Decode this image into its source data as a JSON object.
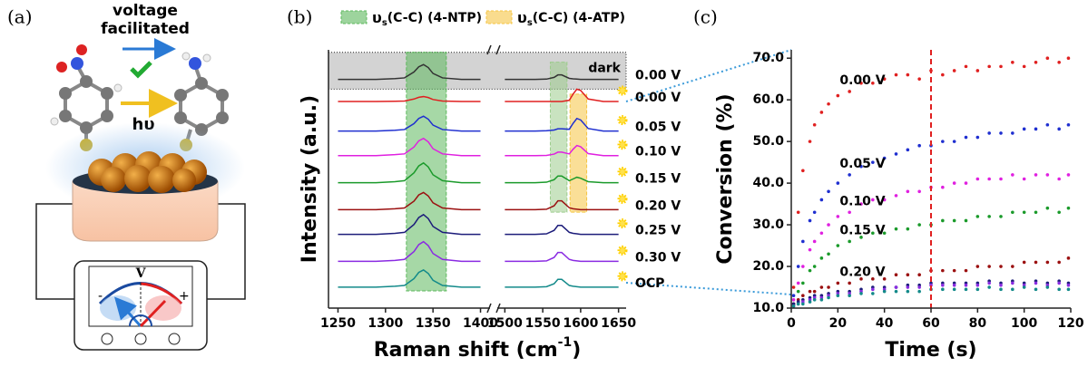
{
  "panel_labels": [
    "(a)",
    "(b)",
    "(c)"
  ],
  "diagram": {
    "top_label": [
      "voltage",
      "facilitated"
    ],
    "light_label": "hυ",
    "meter_label": "V",
    "minus": "-",
    "plus": "+"
  },
  "chart_data": [
    {
      "type": "line",
      "ylabel": "Intensity (a.u.)",
      "xlabel": "Raman shift (cm",
      "xlabel_sup": "-1",
      "xlabel_end": ")",
      "xlim": [
        1240,
        1660
      ],
      "x_break": [
        1410,
        1490
      ],
      "xticks": [
        1250,
        1300,
        1350,
        1400,
        1500,
        1550,
        1600,
        1650
      ],
      "ylim": [
        0,
        10.5
      ],
      "x": [
        1250,
        1290,
        1310,
        1320,
        1330,
        1335,
        1340,
        1345,
        1350,
        1360,
        1380,
        1400,
        1500,
        1540,
        1555,
        1565,
        1570,
        1575,
        1585,
        1590,
        1595,
        1600,
        1610,
        1630,
        1650
      ],
      "bands": [
        {
          "x": [
            1240,
            1660
          ],
          "y": [
            8.9,
            10.4
          ],
          "color": "#c8c8c8",
          "text": "dark"
        },
        {
          "x": [
            1322,
            1364
          ],
          "y": [
            0.7,
            10.4
          ],
          "color": "#5cb85c",
          "legend_symbol": "υ",
          "legend_sub": "s",
          "legend_text": "(C-C) (4-NTP)"
        },
        {
          "x": [
            1560,
            1582
          ],
          "y": [
            3.9,
            10.0
          ],
          "color": "#9ccc8c"
        },
        {
          "x": [
            1586,
            1608
          ],
          "y": [
            3.9,
            8.7
          ],
          "color": "#f5c542",
          "legend_symbol": "υ",
          "legend_sub": "s",
          "legend_text": "(C-C) (4-ATP)"
        }
      ],
      "series": [
        {
          "name": "0.00 V",
          "color": "#333333",
          "light": false,
          "values": [
            9.3,
            9.3,
            9.33,
            9.36,
            9.6,
            9.81,
            9.9,
            9.78,
            9.54,
            9.36,
            9.3,
            9.3,
            9.3,
            9.3,
            9.31,
            9.38,
            9.48,
            9.48,
            9.34,
            9.32,
            9.31,
            9.3,
            9.3,
            9.3,
            9.3
          ]
        },
        {
          "name": "0.00 V",
          "color": "#e02020",
          "light": true,
          "values": [
            8.4,
            8.4,
            8.41,
            8.42,
            8.5,
            8.57,
            8.6,
            8.56,
            8.48,
            8.42,
            8.4,
            8.4,
            8.4,
            8.4,
            8.4,
            8.4,
            8.4,
            8.4,
            8.45,
            8.7,
            8.9,
            8.85,
            8.5,
            8.4,
            8.4
          ]
        },
        {
          "name": "0.05 V",
          "color": "#1f2fd0",
          "light": true,
          "values": [
            7.2,
            7.2,
            7.23,
            7.26,
            7.5,
            7.71,
            7.8,
            7.68,
            7.44,
            7.26,
            7.2,
            7.2,
            7.2,
            7.2,
            7.21,
            7.24,
            7.29,
            7.29,
            7.27,
            7.51,
            7.71,
            7.65,
            7.3,
            7.2,
            7.2
          ]
        },
        {
          "name": "0.10 V",
          "color": "#e020e0",
          "light": true,
          "values": [
            6.2,
            6.2,
            6.24,
            6.27,
            6.55,
            6.8,
            6.9,
            6.76,
            6.48,
            6.27,
            6.2,
            6.2,
            6.2,
            6.2,
            6.21,
            6.26,
            6.34,
            6.34,
            6.27,
            6.46,
            6.61,
            6.56,
            6.28,
            6.2,
            6.2
          ]
        },
        {
          "name": "0.15 V",
          "color": "#1a9a2a",
          "light": true,
          "values": [
            5.1,
            5.1,
            5.14,
            5.18,
            5.5,
            5.78,
            5.9,
            5.74,
            5.42,
            5.18,
            5.1,
            5.1,
            5.1,
            5.1,
            5.12,
            5.22,
            5.37,
            5.37,
            5.18,
            5.25,
            5.32,
            5.28,
            5.14,
            5.1,
            5.1
          ]
        },
        {
          "name": "0.20 V",
          "color": "#9b1010",
          "light": true,
          "values": [
            4.0,
            4.0,
            4.04,
            4.07,
            4.35,
            4.6,
            4.7,
            4.56,
            4.28,
            4.07,
            4.0,
            4.0,
            4.0,
            4.0,
            4.02,
            4.16,
            4.36,
            4.36,
            4.08,
            4.04,
            4.02,
            4.0,
            4.0,
            4.0,
            4.0
          ]
        },
        {
          "name": "0.25 V",
          "color": "#1c1c7a",
          "light": true,
          "values": [
            3.0,
            3.0,
            3.04,
            3.08,
            3.4,
            3.68,
            3.8,
            3.64,
            3.32,
            3.08,
            3.0,
            3.0,
            3.0,
            3.0,
            3.02,
            3.16,
            3.36,
            3.36,
            3.08,
            3.04,
            3.02,
            3.0,
            3.0,
            3.0,
            3.0
          ]
        },
        {
          "name": "0.30 V",
          "color": "#8a2be2",
          "light": true,
          "values": [
            1.9,
            1.9,
            1.94,
            1.98,
            2.3,
            2.58,
            2.7,
            2.54,
            2.22,
            1.98,
            1.9,
            1.9,
            1.9,
            1.9,
            1.92,
            2.06,
            2.26,
            2.26,
            1.98,
            1.94,
            1.92,
            1.9,
            1.9,
            1.9,
            1.9
          ]
        },
        {
          "name": "OCP",
          "color": "#138a8a",
          "light": true,
          "values": [
            0.85,
            0.85,
            0.89,
            0.92,
            1.2,
            1.45,
            1.55,
            1.41,
            1.13,
            0.92,
            0.85,
            0.85,
            0.85,
            0.85,
            0.87,
            0.99,
            1.17,
            1.17,
            0.92,
            0.89,
            0.87,
            0.85,
            0.85,
            0.85,
            0.85
          ]
        }
      ]
    },
    {
      "type": "scatter",
      "xlabel": "Time (s)",
      "ylabel": "Conversion (%)",
      "xlim": [
        0,
        120
      ],
      "xticks": [
        0,
        20,
        40,
        60,
        80,
        100,
        120
      ],
      "ylim": [
        10,
        72
      ],
      "yticks": [
        {
          "value": 10,
          "label": "10.0"
        },
        {
          "value": 20,
          "label": "20.0"
        },
        {
          "value": 30,
          "label": "30.0"
        },
        {
          "value": 40,
          "label": "40.0"
        },
        {
          "value": 50,
          "label": "50.0"
        },
        {
          "value": 60,
          "label": "60.0"
        },
        {
          "value": 70,
          "label": "70.0"
        }
      ],
      "vline": 60,
      "vline_color": "#e02020",
      "x": [
        1,
        3,
        5,
        8,
        10,
        13,
        16,
        20,
        25,
        30,
        35,
        40,
        45,
        50,
        55,
        60,
        65,
        70,
        75,
        80,
        85,
        90,
        95,
        100,
        105,
        110,
        115,
        119
      ],
      "series": [
        {
          "name": "0.00 V",
          "color": "#e02020",
          "values": [
            15,
            33,
            43,
            50,
            54,
            57,
            59,
            61,
            62,
            64,
            64,
            65,
            66,
            66,
            65,
            67,
            66,
            67,
            68,
            67,
            68,
            68,
            69,
            68,
            69,
            70,
            69,
            70
          ]
        },
        {
          "name": "0.05 V",
          "color": "#1f2fd0",
          "values": [
            13,
            20,
            26,
            31,
            33,
            36,
            38,
            40,
            42,
            44,
            45,
            46,
            47,
            48,
            49,
            49,
            50,
            50,
            51,
            51,
            52,
            52,
            52,
            53,
            53,
            54,
            53,
            54
          ]
        },
        {
          "name": "0.10 V",
          "color": "#e020e0",
          "values": [
            12,
            16,
            20,
            24,
            26,
            28,
            30,
            32,
            33,
            35,
            36,
            36,
            37,
            38,
            38,
            39,
            39,
            40,
            40,
            41,
            41,
            41,
            42,
            41,
            42,
            42,
            41,
            42
          ]
        },
        {
          "name": "0.15 V",
          "color": "#1a9a2a",
          "values": [
            11,
            14,
            16,
            19,
            20,
            22,
            23,
            25,
            26,
            27,
            28,
            28,
            29,
            29,
            30,
            30,
            31,
            31,
            31,
            32,
            32,
            32,
            33,
            33,
            33,
            34,
            33,
            34
          ]
        },
        {
          "name": "0.20 V",
          "color": "#9b1010",
          "values": [
            11,
            12,
            13,
            14,
            14,
            15,
            15,
            16,
            16,
            17,
            17,
            17,
            18,
            18,
            18,
            19,
            19,
            19,
            19,
            20,
            20,
            20,
            20,
            21,
            21,
            21,
            21,
            22
          ]
        },
        {
          "color": "#1c1c7a",
          "values": [
            11,
            11.5,
            12,
            12.5,
            13,
            13,
            13.5,
            14,
            14,
            14.5,
            15,
            15,
            15,
            15.5,
            15.5,
            16,
            16,
            16,
            16,
            16,
            16.5,
            16,
            16.5,
            16,
            16.5,
            16,
            16.5,
            16
          ]
        },
        {
          "color": "#8a2be2",
          "values": [
            10.5,
            11,
            11.5,
            12,
            12.5,
            12.5,
            13,
            13.5,
            13.5,
            14,
            14.5,
            14.5,
            15,
            15,
            15,
            15.5,
            15.5,
            15.5,
            15.5,
            15.5,
            16,
            15.5,
            16,
            15.5,
            16,
            15.5,
            16,
            15.5
          ]
        },
        {
          "color": "#138a8a",
          "values": [
            10.5,
            11,
            11,
            11.5,
            12,
            12,
            12.5,
            13,
            13,
            13.5,
            13.5,
            14,
            14,
            14,
            14,
            14.5,
            14.5,
            14.5,
            14.5,
            14.5,
            15,
            14.5,
            14.5,
            15,
            14.5,
            15,
            14.5,
            14.5
          ]
        }
      ]
    }
  ]
}
